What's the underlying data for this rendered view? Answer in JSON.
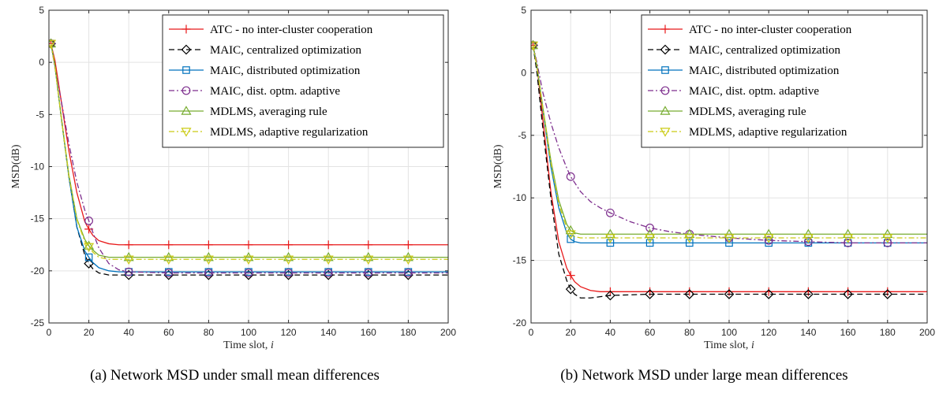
{
  "chart_data": [
    {
      "type": "line",
      "caption": "(a) Network MSD under small mean differences",
      "xlabel": "Time slot, i",
      "ylabel": "MSD(dB)",
      "xlim": [
        0,
        200
      ],
      "ylim": [
        -25,
        5
      ],
      "xticks": [
        0,
        20,
        40,
        60,
        80,
        100,
        120,
        140,
        160,
        180,
        200
      ],
      "yticks": [
        5,
        0,
        -5,
        -10,
        -15,
        -20,
        -25
      ],
      "grid": true,
      "legend_position": "top-right",
      "series": [
        {
          "name": "ATC - no inter-cluster cooperation",
          "color": "#e8191a",
          "dash": "solid",
          "marker": "plus",
          "x": [
            1,
            3,
            6,
            10,
            14,
            18,
            20,
            22,
            25,
            30,
            35,
            40,
            60,
            80,
            100,
            120,
            140,
            160,
            180,
            200
          ],
          "y": [
            1.8,
            0.2,
            -3.5,
            -8.5,
            -12.5,
            -15.3,
            -16.0,
            -16.6,
            -17.1,
            -17.4,
            -17.5,
            -17.5,
            -17.5,
            -17.5,
            -17.5,
            -17.5,
            -17.5,
            -17.5,
            -17.5,
            -17.5
          ]
        },
        {
          "name": "MAIC, centralized optimization",
          "color": "#000000",
          "dash": "dashed",
          "marker": "diamond",
          "x": [
            1,
            3,
            6,
            10,
            14,
            18,
            20,
            22,
            25,
            30,
            35,
            40,
            60,
            80,
            100,
            120,
            140,
            160,
            180,
            200
          ],
          "y": [
            1.8,
            -0.3,
            -5.0,
            -11.0,
            -15.8,
            -18.5,
            -19.3,
            -19.8,
            -20.2,
            -20.4,
            -20.4,
            -20.4,
            -20.4,
            -20.4,
            -20.4,
            -20.4,
            -20.4,
            -20.4,
            -20.4,
            -20.4
          ]
        },
        {
          "name": "MAIC, distributed optimization",
          "color": "#0072bd",
          "dash": "solid",
          "marker": "square",
          "x": [
            1,
            3,
            6,
            10,
            14,
            18,
            20,
            22,
            25,
            30,
            35,
            40,
            60,
            80,
            100,
            120,
            140,
            160,
            180,
            200
          ],
          "y": [
            1.8,
            -0.3,
            -5.0,
            -11.0,
            -15.8,
            -18.1,
            -18.7,
            -19.2,
            -19.7,
            -20.0,
            -20.1,
            -20.1,
            -20.1,
            -20.1,
            -20.1,
            -20.1,
            -20.1,
            -20.1,
            -20.1,
            -20.1
          ]
        },
        {
          "name": "MAIC, dist. optm. adaptive",
          "color": "#7e2f8e",
          "dash": "dashdot",
          "marker": "circle",
          "x": [
            1,
            3,
            6,
            10,
            14,
            18,
            20,
            22,
            25,
            30,
            35,
            40,
            60,
            80,
            100,
            120,
            140,
            160,
            180,
            200
          ],
          "y": [
            1.8,
            -0.5,
            -3.5,
            -7.8,
            -11.5,
            -14.2,
            -15.2,
            -16.3,
            -17.8,
            -19.3,
            -19.9,
            -20.1,
            -20.2,
            -20.2,
            -20.2,
            -20.2,
            -20.2,
            -20.2,
            -20.2,
            -20.2
          ]
        },
        {
          "name": "MDLMS, averaging rule",
          "color": "#77ac30",
          "dash": "solid",
          "marker": "triangle-up",
          "x": [
            1,
            3,
            6,
            10,
            14,
            18,
            20,
            22,
            25,
            30,
            35,
            40,
            60,
            80,
            100,
            120,
            140,
            160,
            180,
            200
          ],
          "y": [
            1.8,
            -0.3,
            -5.0,
            -10.8,
            -15.0,
            -17.0,
            -17.6,
            -18.0,
            -18.5,
            -18.7,
            -18.7,
            -18.7,
            -18.7,
            -18.7,
            -18.7,
            -18.7,
            -18.7,
            -18.7,
            -18.7,
            -18.7
          ]
        },
        {
          "name": "MDLMS, adaptive regularization",
          "color": "#cbcb14",
          "dash": "dashdot",
          "marker": "triangle-down",
          "x": [
            1,
            3,
            6,
            10,
            14,
            18,
            20,
            22,
            25,
            30,
            35,
            40,
            60,
            80,
            100,
            120,
            140,
            160,
            180,
            200
          ],
          "y": [
            1.8,
            -0.3,
            -5.0,
            -10.9,
            -15.1,
            -17.2,
            -17.7,
            -18.2,
            -18.7,
            -18.9,
            -18.9,
            -18.9,
            -18.9,
            -18.9,
            -18.9,
            -18.9,
            -18.9,
            -18.9,
            -18.9,
            -18.9
          ]
        }
      ]
    },
    {
      "type": "line",
      "caption": "(b) Network MSD under large mean differences",
      "xlabel": "Time slot, i",
      "ylabel": "MSD(dB)",
      "xlim": [
        0,
        200
      ],
      "ylim": [
        -20,
        5
      ],
      "xticks": [
        0,
        20,
        40,
        60,
        80,
        100,
        120,
        140,
        160,
        180,
        200
      ],
      "yticks": [
        5,
        0,
        -5,
        -10,
        -15,
        -20
      ],
      "grid": true,
      "legend_position": "top-right",
      "series": [
        {
          "name": "ATC - no inter-cluster cooperation",
          "color": "#e8191a",
          "dash": "solid",
          "marker": "plus",
          "x": [
            1,
            3,
            6,
            10,
            14,
            18,
            20,
            22,
            25,
            30,
            35,
            40,
            60,
            80,
            100,
            120,
            140,
            160,
            180,
            200
          ],
          "y": [
            2.2,
            0.5,
            -3.8,
            -9.5,
            -13.5,
            -15.6,
            -16.2,
            -16.7,
            -17.1,
            -17.4,
            -17.5,
            -17.5,
            -17.5,
            -17.5,
            -17.5,
            -17.5,
            -17.5,
            -17.5,
            -17.5,
            -17.5
          ]
        },
        {
          "name": "MAIC, centralized optimization",
          "color": "#000000",
          "dash": "dashed",
          "marker": "diamond",
          "x": [
            1,
            3,
            6,
            10,
            14,
            18,
            20,
            22,
            25,
            30,
            35,
            40,
            60,
            80,
            100,
            120,
            140,
            160,
            180,
            200
          ],
          "y": [
            2.2,
            0.0,
            -4.5,
            -10.0,
            -14.5,
            -16.6,
            -17.3,
            -17.7,
            -18.0,
            -18.0,
            -17.9,
            -17.8,
            -17.7,
            -17.7,
            -17.7,
            -17.7,
            -17.7,
            -17.7,
            -17.7,
            -17.7
          ]
        },
        {
          "name": "MAIC, distributed optimization",
          "color": "#0072bd",
          "dash": "solid",
          "marker": "square",
          "x": [
            1,
            3,
            6,
            10,
            14,
            18,
            20,
            22,
            25,
            30,
            35,
            40,
            60,
            80,
            100,
            120,
            140,
            160,
            180,
            200
          ],
          "y": [
            2.2,
            0.5,
            -3.0,
            -7.5,
            -10.8,
            -12.8,
            -13.3,
            -13.5,
            -13.6,
            -13.6,
            -13.6,
            -13.6,
            -13.6,
            -13.6,
            -13.6,
            -13.6,
            -13.6,
            -13.6,
            -13.6,
            -13.6
          ]
        },
        {
          "name": "MAIC, dist. optm. adaptive",
          "color": "#7e2f8e",
          "dash": "dashdot",
          "marker": "circle",
          "x": [
            1,
            3,
            6,
            10,
            14,
            18,
            20,
            25,
            30,
            35,
            40,
            50,
            60,
            70,
            80,
            100,
            120,
            140,
            160,
            180,
            200
          ],
          "y": [
            2.2,
            0.8,
            -1.6,
            -4.0,
            -6.0,
            -7.6,
            -8.3,
            -9.5,
            -10.3,
            -10.8,
            -11.2,
            -11.9,
            -12.4,
            -12.7,
            -12.9,
            -13.2,
            -13.4,
            -13.5,
            -13.6,
            -13.6,
            -13.6
          ]
        },
        {
          "name": "MDLMS, averaging rule",
          "color": "#77ac30",
          "dash": "solid",
          "marker": "triangle-up",
          "x": [
            1,
            3,
            6,
            10,
            14,
            18,
            20,
            22,
            25,
            30,
            35,
            40,
            60,
            80,
            100,
            120,
            140,
            160,
            180,
            200
          ],
          "y": [
            2.2,
            0.5,
            -2.8,
            -7.0,
            -10.2,
            -12.1,
            -12.6,
            -12.8,
            -12.9,
            -12.9,
            -12.9,
            -12.9,
            -12.9,
            -12.9,
            -12.9,
            -12.9,
            -12.9,
            -12.9,
            -12.9,
            -12.9
          ]
        },
        {
          "name": "MDLMS, adaptive regularization",
          "color": "#cbcb14",
          "dash": "dashdot",
          "marker": "triangle-down",
          "x": [
            1,
            3,
            6,
            10,
            14,
            18,
            20,
            22,
            25,
            30,
            35,
            40,
            60,
            80,
            100,
            120,
            140,
            160,
            180,
            200
          ],
          "y": [
            2.2,
            0.5,
            -2.9,
            -7.2,
            -10.5,
            -12.4,
            -12.9,
            -13.1,
            -13.2,
            -13.2,
            -13.2,
            -13.2,
            -13.2,
            -13.2,
            -13.2,
            -13.2,
            -13.2,
            -13.2,
            -13.2,
            -13.2
          ]
        }
      ]
    }
  ]
}
